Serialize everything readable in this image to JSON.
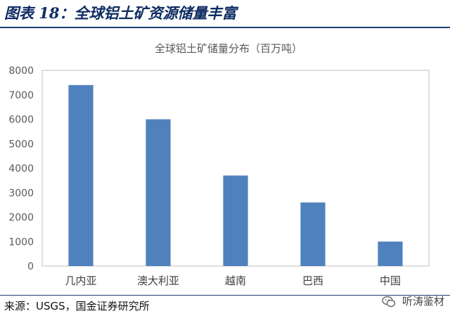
{
  "figure": {
    "label": "图表 18：全球铝土矿资源储量丰富",
    "source": "来源：USGS，国金证券研究所",
    "watermark": "听涛鉴材"
  },
  "chart_data": {
    "type": "bar",
    "title": "全球铝土矿储量分布（百万吨）",
    "categories": [
      "几内亚",
      "澳大利亚",
      "越南",
      "巴西",
      "中国"
    ],
    "values": [
      7400,
      6000,
      3700,
      2600,
      1000
    ],
    "ylim": [
      0,
      8000
    ],
    "yticks": [
      0,
      1000,
      2000,
      3000,
      4000,
      5000,
      6000,
      7000,
      8000
    ],
    "xlabel": "",
    "ylabel": "",
    "grid": false,
    "bar_color": "#4f81bd",
    "axis_color": "#bfbfbf"
  }
}
